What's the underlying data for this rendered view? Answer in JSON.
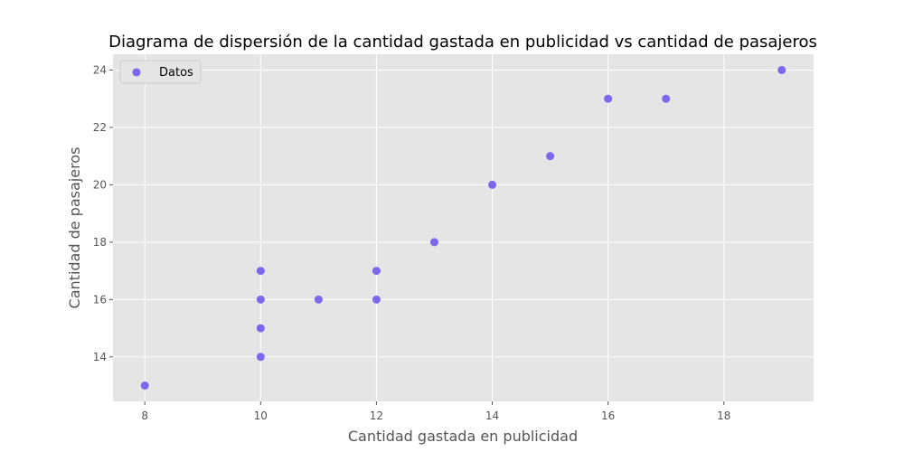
{
  "chart_data": {
    "type": "scatter",
    "title": "Diagrama de dispersión de la cantidad gastada en publicidad vs cantidad de pasajeros",
    "xlabel": "Cantidad gastada en publicidad",
    "ylabel": "Cantidad de pasajeros",
    "xlim": [
      7.45,
      19.55
    ],
    "ylim": [
      12.45,
      24.55
    ],
    "xticks": [
      8,
      10,
      12,
      14,
      16,
      18
    ],
    "yticks": [
      14,
      16,
      18,
      20,
      22,
      24
    ],
    "grid": true,
    "legend_position": "top-left",
    "series": [
      {
        "name": "Datos",
        "color": "#7b68ee",
        "points": [
          {
            "x": 8,
            "y": 13
          },
          {
            "x": 10,
            "y": 14
          },
          {
            "x": 10,
            "y": 15
          },
          {
            "x": 10,
            "y": 16
          },
          {
            "x": 10,
            "y": 17
          },
          {
            "x": 11,
            "y": 16
          },
          {
            "x": 12,
            "y": 16
          },
          {
            "x": 12,
            "y": 17
          },
          {
            "x": 13,
            "y": 18
          },
          {
            "x": 14,
            "y": 20
          },
          {
            "x": 15,
            "y": 21
          },
          {
            "x": 16,
            "y": 23
          },
          {
            "x": 17,
            "y": 23
          },
          {
            "x": 19,
            "y": 24
          }
        ]
      }
    ]
  }
}
